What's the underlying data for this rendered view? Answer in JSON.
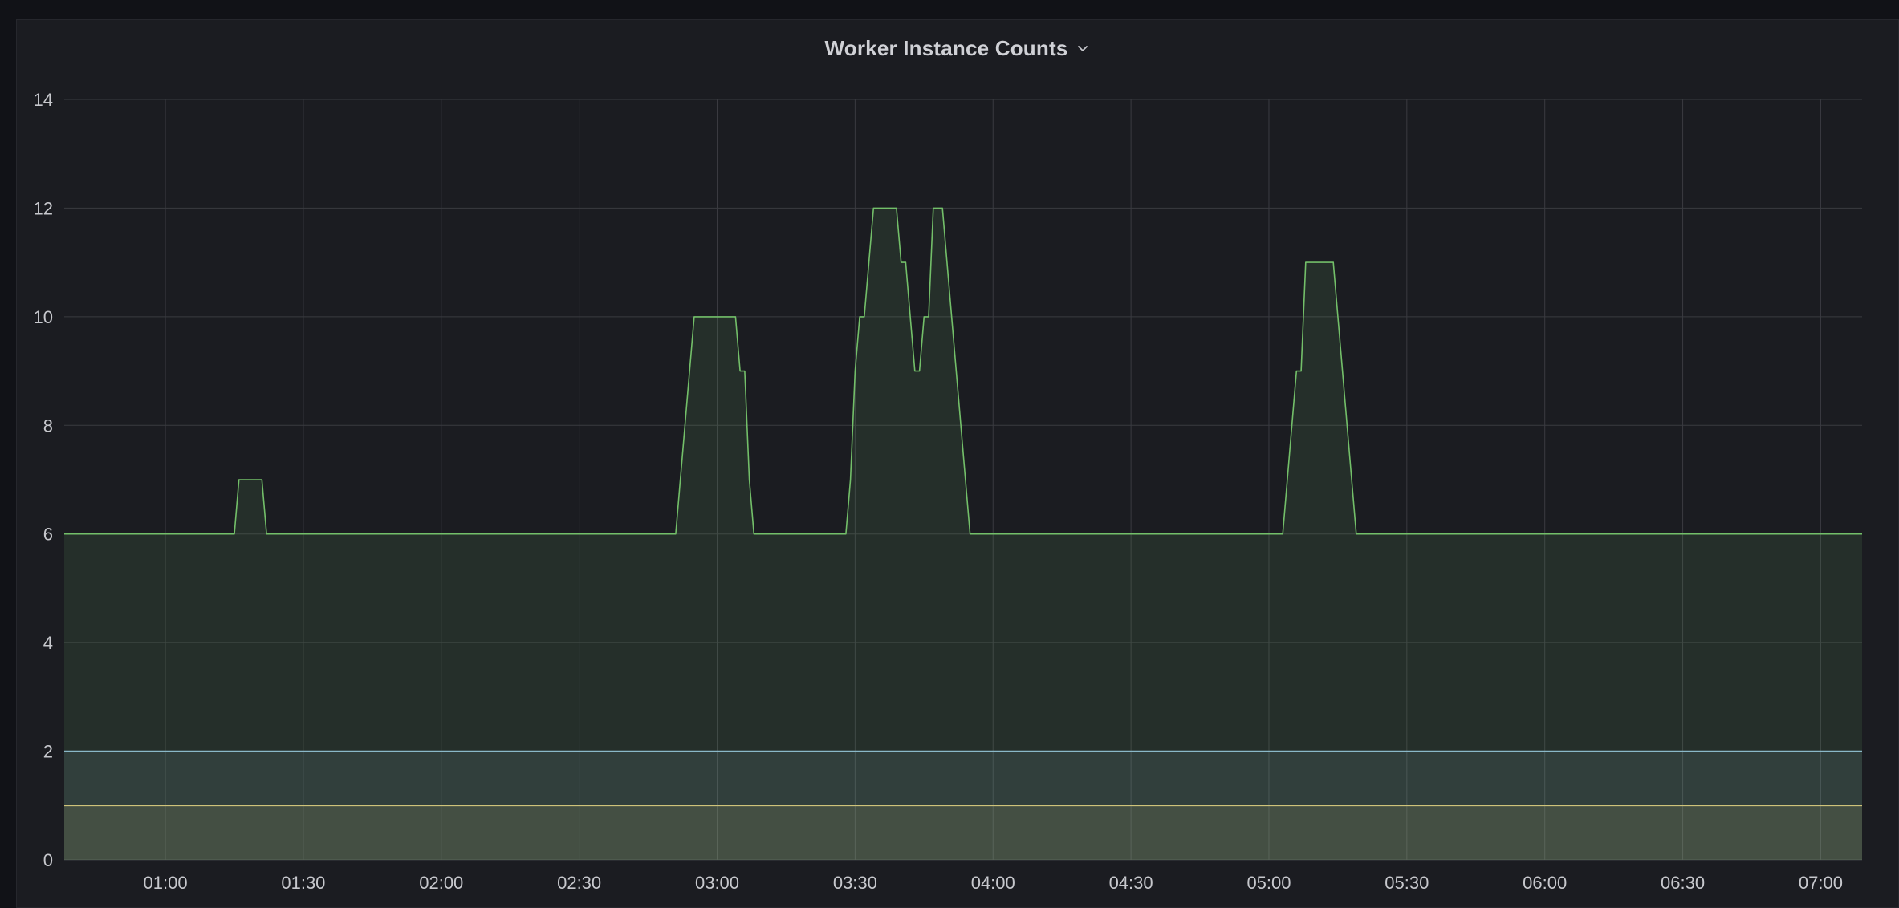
{
  "panel": {
    "title": "Worker Instance Counts"
  },
  "chart_data": {
    "type": "area",
    "title": "Worker Instance Counts",
    "xlabel": "",
    "ylabel": "",
    "ylim": [
      0,
      14
    ],
    "yticks": [
      0,
      2,
      4,
      6,
      8,
      10,
      12,
      14
    ],
    "xticks": [
      "01:00",
      "01:30",
      "02:00",
      "02:30",
      "03:00",
      "03:30",
      "04:00",
      "04:30",
      "05:00",
      "05:30",
      "06:00",
      "06:30",
      "07:00"
    ],
    "xlim": [
      "00:38",
      "07:09"
    ],
    "grid": true,
    "legend": "none",
    "series": [
      {
        "color": "#73bf69",
        "points": [
          [
            "00:38",
            6
          ],
          [
            "01:15",
            6
          ],
          [
            "01:16",
            7
          ],
          [
            "01:21",
            7
          ],
          [
            "01:22",
            6
          ],
          [
            "02:51",
            6
          ],
          [
            "02:55",
            10
          ],
          [
            "03:04",
            10
          ],
          [
            "03:05",
            9
          ],
          [
            "03:06",
            9
          ],
          [
            "03:07",
            7
          ],
          [
            "03:08",
            6
          ],
          [
            "03:28",
            6
          ],
          [
            "03:29",
            7
          ],
          [
            "03:30",
            9
          ],
          [
            "03:31",
            10
          ],
          [
            "03:32",
            10
          ],
          [
            "03:34",
            12
          ],
          [
            "03:39",
            12
          ],
          [
            "03:40",
            11
          ],
          [
            "03:41",
            11
          ],
          [
            "03:43",
            9
          ],
          [
            "03:44",
            9
          ],
          [
            "03:45",
            10
          ],
          [
            "03:46",
            10
          ],
          [
            "03:47",
            12
          ],
          [
            "03:49",
            12
          ],
          [
            "03:50",
            11
          ],
          [
            "03:55",
            6
          ],
          [
            "05:03",
            6
          ],
          [
            "05:06",
            9
          ],
          [
            "05:07",
            9
          ],
          [
            "05:08",
            11
          ],
          [
            "05:14",
            11
          ],
          [
            "05:19",
            6
          ],
          [
            "07:09",
            6
          ]
        ]
      },
      {
        "color": "#8ab8c8",
        "points": [
          [
            "00:38",
            2
          ],
          [
            "07:09",
            2
          ]
        ]
      },
      {
        "color": "#cfc37a",
        "points": [
          [
            "00:38",
            1
          ],
          [
            "07:09",
            1
          ]
        ]
      }
    ]
  }
}
